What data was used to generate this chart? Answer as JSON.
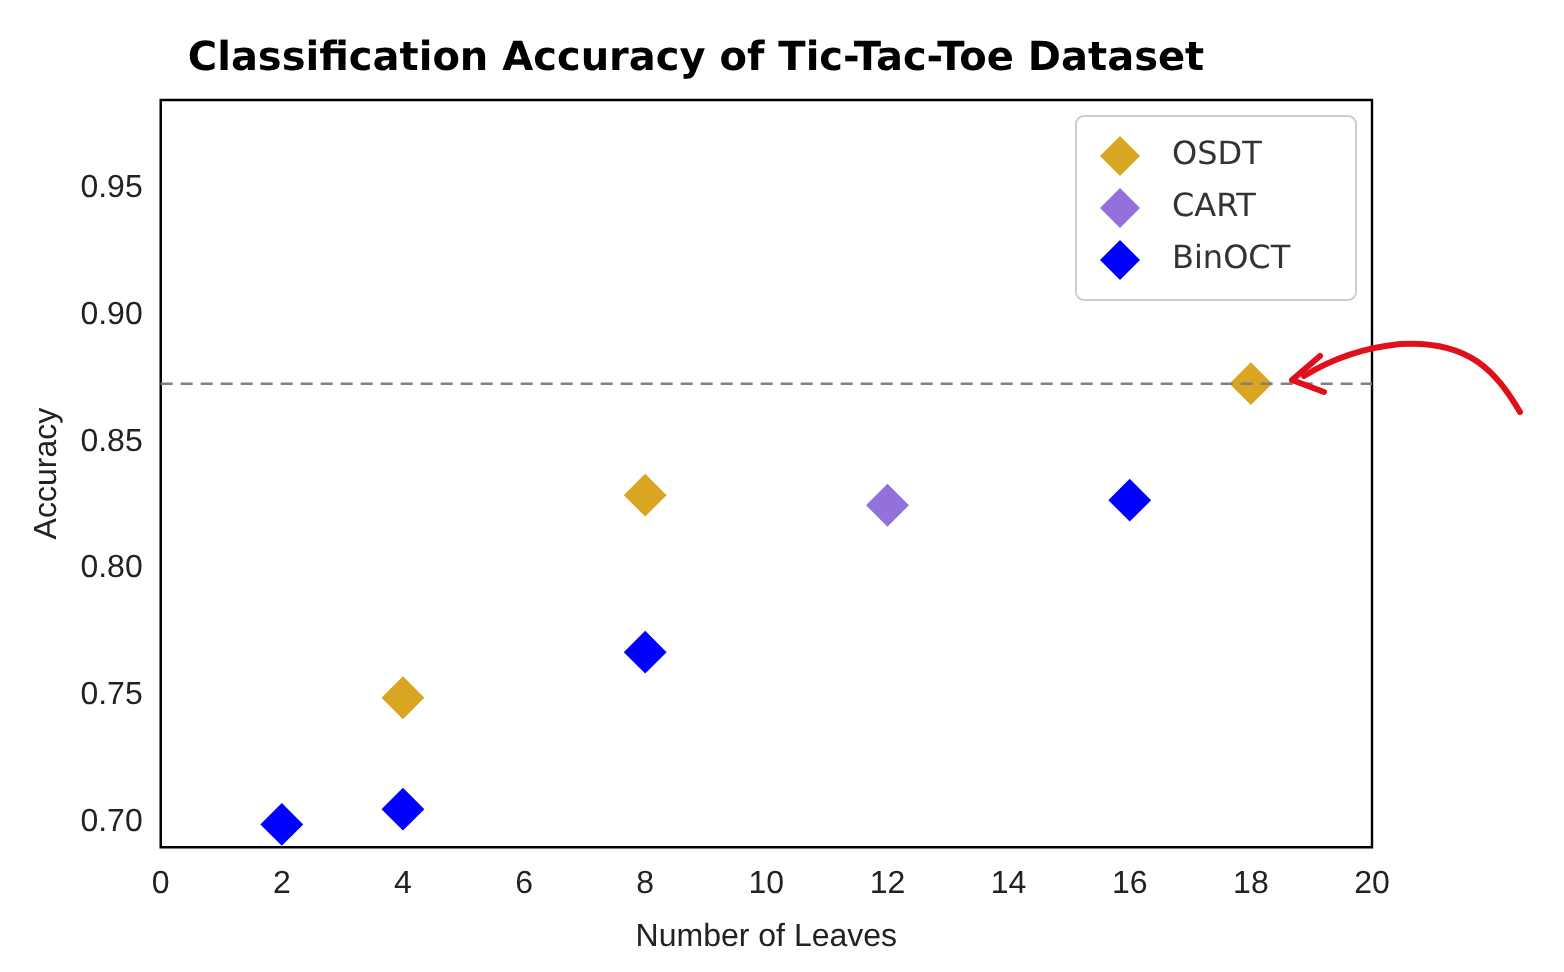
{
  "chart_data": {
    "type": "scatter",
    "title": "Classification Accuracy of Tic-Tac-Toe Dataset",
    "xlabel": "Number of Leaves",
    "ylabel": "Accuracy",
    "series": [
      {
        "name": "OSDT",
        "color": "#daa520",
        "x": [
          4,
          8,
          18
        ],
        "values": [
          0.749,
          0.829,
          0.873
        ]
      },
      {
        "name": "CART",
        "color": "#9370db",
        "x": [
          12
        ],
        "values": [
          0.825
        ]
      },
      {
        "name": "BinOCT",
        "color": "#0000ff",
        "x": [
          2,
          4,
          8,
          16
        ],
        "values": [
          0.699,
          0.705,
          0.767,
          0.827
        ]
      }
    ],
    "xlim": [
      0,
      20
    ],
    "xticks": [
      0,
      2,
      4,
      6,
      8,
      10,
      12,
      14,
      16,
      18,
      20
    ],
    "ylim": [
      0.69,
      0.985
    ],
    "yticks": [
      {
        "value": 0.7,
        "label": "0.70"
      },
      {
        "value": 0.75,
        "label": "0.75"
      },
      {
        "value": 0.8,
        "label": "0.80"
      },
      {
        "value": 0.85,
        "label": "0.85"
      },
      {
        "value": 0.9,
        "label": "0.90"
      },
      {
        "value": 0.95,
        "label": "0.95"
      }
    ],
    "ref_lines": [
      {
        "axis": "y",
        "value": 0.873,
        "color": "#808080",
        "line_style": "dashed"
      }
    ],
    "marker": "diamond",
    "legend": "top right",
    "grid": false
  }
}
